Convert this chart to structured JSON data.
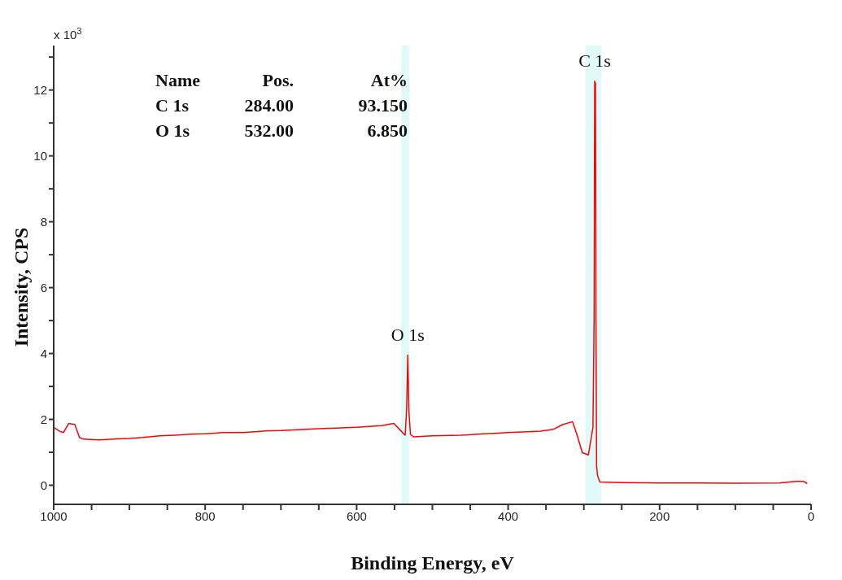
{
  "chart_data": {
    "type": "line",
    "xlabel": "Binding Energy, eV",
    "ylabel": "Intensity, CPS",
    "x": [
      1000,
      992,
      987,
      980,
      972,
      966,
      961,
      940,
      920,
      900,
      882,
      860,
      840,
      820,
      800,
      777,
      750,
      720,
      700,
      672,
      650,
      620,
      600,
      567,
      551,
      541,
      536,
      534,
      532.5,
      531,
      529,
      525,
      500,
      462,
      430,
      400,
      357,
      340,
      328,
      315,
      310,
      302,
      294,
      288,
      286.5,
      285.7,
      284.7,
      284,
      283.2,
      282,
      279,
      250,
      200,
      147,
      100,
      42,
      20,
      10,
      5
    ],
    "series": [
      {
        "color": "#ff0000",
        "values": [
          1.76,
          1.64,
          1.6,
          1.88,
          1.84,
          1.45,
          1.4,
          1.38,
          1.4,
          1.42,
          1.45,
          1.5,
          1.52,
          1.55,
          1.56,
          1.6,
          1.6,
          1.65,
          1.66,
          1.69,
          1.72,
          1.74,
          1.76,
          1.81,
          1.88,
          1.64,
          1.52,
          2.3,
          3.95,
          2.25,
          1.55,
          1.47,
          1.5,
          1.52,
          1.56,
          1.6,
          1.64,
          1.7,
          1.84,
          1.93,
          1.6,
          0.99,
          0.92,
          1.76,
          5,
          12.27,
          12.2,
          5,
          0.6,
          0.3,
          0.1,
          0.08,
          0.07,
          0.07,
          0.06,
          0.07,
          0.12,
          0.12,
          0.05
        ]
      }
    ],
    "xlim": [
      1000,
      0
    ],
    "xticks": [
      1000,
      {
        "value": 950,
        "label": null
      },
      {
        "value": 900,
        "label": null
      },
      {
        "value": 850,
        "label": null
      },
      800,
      {
        "value": 750,
        "label": null
      },
      {
        "value": 700,
        "label": null
      },
      {
        "value": 650,
        "label": null
      },
      600,
      {
        "value": 550,
        "label": null
      },
      {
        "value": 500,
        "label": null
      },
      {
        "value": 450,
        "label": null
      },
      400,
      {
        "value": 350,
        "label": null
      },
      {
        "value": 300,
        "label": null
      },
      {
        "value": 250,
        "label": null
      },
      200,
      {
        "value": 150,
        "label": null
      },
      {
        "value": 100,
        "label": null
      },
      {
        "value": 50,
        "label": null
      },
      0
    ],
    "ylim": [
      -0.58,
      13.35
    ],
    "yticks": [
      0,
      {
        "value": 1,
        "label": null
      },
      2,
      {
        "value": 3,
        "label": null
      },
      4,
      {
        "value": 5,
        "label": null
      },
      6,
      {
        "value": 7,
        "label": null
      },
      8,
      {
        "value": 9,
        "label": null
      },
      10,
      {
        "value": 11,
        "label": null
      },
      12,
      {
        "value": 13,
        "label": null
      }
    ],
    "bands": [
      {
        "axis": "x",
        "from": 541,
        "to": 530.5,
        "color": "#e0fafa"
      },
      {
        "axis": "x",
        "from": 298,
        "to": 277,
        "color": "#e0fafa"
      }
    ],
    "annotations": [
      "x 10$^{3}$",
      "Name   Pos.   At%",
      "C 1s   284.00   93.150",
      "O 1s   532.00   6.850",
      {
        "text": "C 1s",
        "x": 285.7,
        "y": 12.27
      },
      {
        "text": "O 1s",
        "x": 532.5,
        "y": 3.95
      }
    ],
    "marker": "none",
    "line_style": "solid"
  }
}
